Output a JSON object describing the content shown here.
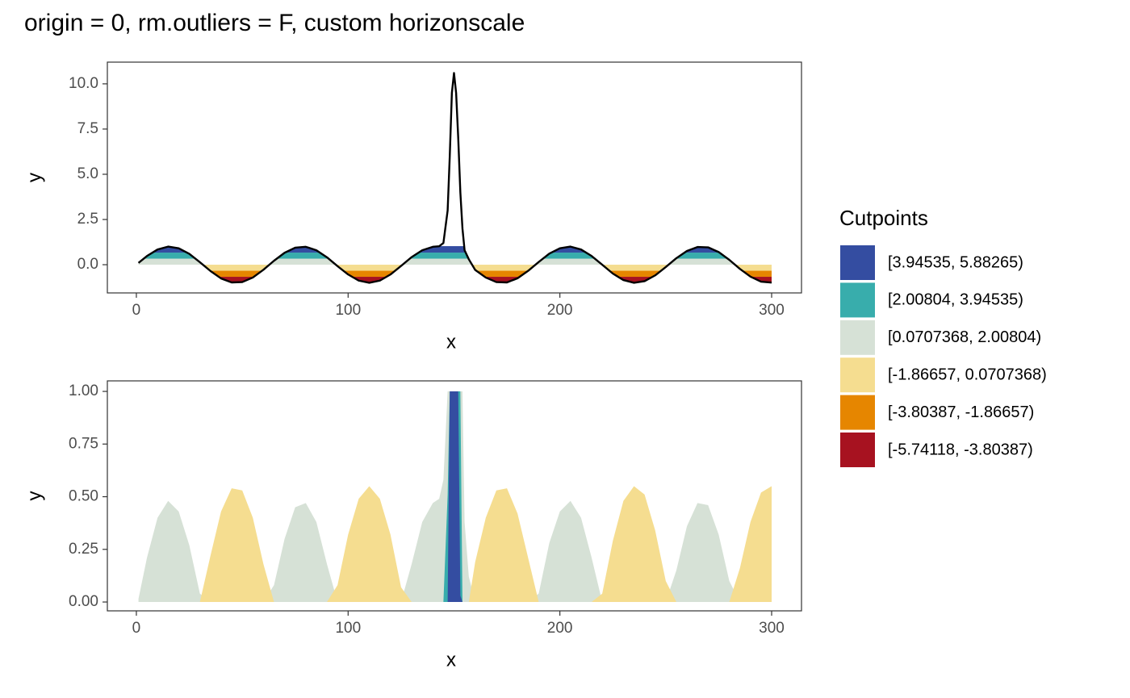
{
  "chart_data": [
    {
      "type": "line",
      "title": "origin = 0, rm.outliers = F, custom horizonscale",
      "xlabel": "x",
      "ylabel": "y",
      "color": "#000000",
      "x": [
        1,
        5,
        10,
        15,
        20,
        25,
        30,
        35,
        40,
        45,
        50,
        55,
        60,
        65,
        70,
        75,
        80,
        85,
        90,
        95,
        100,
        105,
        110,
        115,
        120,
        125,
        130,
        135,
        140,
        143,
        145,
        147,
        148,
        149,
        150,
        151,
        152,
        153,
        154,
        155,
        157,
        160,
        165,
        170,
        175,
        180,
        185,
        190,
        195,
        200,
        205,
        210,
        215,
        220,
        225,
        230,
        235,
        240,
        245,
        250,
        255,
        260,
        265,
        270,
        275,
        280,
        285,
        290,
        295,
        300
      ],
      "values": [
        0.1,
        0.48,
        0.84,
        1.0,
        0.91,
        0.6,
        0.14,
        -0.35,
        -0.76,
        -0.98,
        -0.96,
        -0.71,
        -0.28,
        0.22,
        0.66,
        0.94,
        0.99,
        0.8,
        0.41,
        -0.08,
        -0.54,
        -0.88,
        -1.0,
        -0.88,
        -0.54,
        -0.07,
        0.42,
        0.8,
        0.99,
        1.02,
        1.2,
        3.0,
        6.0,
        9.5,
        10.6,
        9.5,
        7.0,
        4.0,
        2.0,
        0.8,
        0.3,
        -0.29,
        -0.71,
        -0.96,
        -0.98,
        -0.75,
        -0.34,
        0.15,
        0.61,
        0.91,
        1.0,
        0.84,
        0.48,
        0.0,
        -0.49,
        -0.85,
        -1.0,
        -0.91,
        -0.59,
        -0.13,
        0.36,
        0.76,
        0.98,
        0.96,
        0.7,
        0.27,
        -0.23,
        -0.66,
        -0.94,
        -0.99
      ],
      "xlim": [
        -13.7,
        314.1
      ],
      "xticks": [
        0,
        100,
        200,
        300
      ],
      "ylim": [
        -1.56,
        11.2
      ],
      "yticks": [
        {
          "value": 0,
          "label": "0.0"
        },
        {
          "value": 2.5,
          "label": "2.5"
        },
        {
          "value": 5,
          "label": "5.0"
        },
        {
          "value": 7.5,
          "label": "7.5"
        },
        {
          "value": 10,
          "label": "10.0"
        }
      ],
      "grid": false
    },
    {
      "type": "area",
      "xlabel": "x",
      "ylabel": "y",
      "legend_title": "Cutpoints",
      "legend": "right",
      "x": [
        1,
        5,
        10,
        15,
        20,
        25,
        30,
        35,
        40,
        45,
        50,
        55,
        60,
        65,
        70,
        75,
        80,
        85,
        90,
        95,
        100,
        105,
        110,
        115,
        120,
        125,
        130,
        135,
        140,
        143,
        145,
        147,
        148,
        149,
        150,
        151,
        152,
        153,
        154,
        155,
        157,
        160,
        165,
        170,
        175,
        180,
        185,
        190,
        195,
        200,
        205,
        210,
        215,
        220,
        225,
        230,
        235,
        240,
        245,
        250,
        255,
        260,
        265,
        270,
        275,
        280,
        285,
        290,
        295,
        300
      ],
      "series": [
        {
          "name": "[3.94535, 5.88265)",
          "color": "#344da1",
          "values": [
            0,
            0,
            0,
            0,
            0,
            0,
            0,
            0,
            0,
            0,
            0,
            0,
            0,
            0,
            0,
            0,
            0,
            0,
            0,
            0,
            0,
            0,
            0,
            0,
            0,
            0,
            0,
            0,
            0,
            0,
            0,
            0,
            1,
            1,
            1,
            1,
            1,
            0.03,
            0,
            0,
            0,
            0,
            0,
            0,
            0,
            0,
            0,
            0,
            0,
            0,
            0,
            0,
            0,
            0,
            0,
            0,
            0,
            0,
            0,
            0,
            0,
            0,
            0,
            0,
            0,
            0,
            0,
            0,
            0,
            0
          ]
        },
        {
          "name": "[2.00804, 3.94535)",
          "color": "#38adac",
          "values": [
            0,
            0,
            0,
            0,
            0,
            0,
            0,
            0,
            0,
            0,
            0,
            0,
            0,
            0,
            0,
            0,
            0,
            0,
            0,
            0,
            0,
            0,
            0,
            0,
            0,
            0,
            0,
            0,
            0,
            0,
            0,
            0.51,
            1,
            1,
            1,
            1,
            1,
            1,
            0,
            0,
            0,
            0,
            0,
            0,
            0,
            0,
            0,
            0,
            0,
            0,
            0,
            0,
            0,
            0,
            0,
            0,
            0,
            0,
            0,
            0,
            0,
            0,
            0,
            0,
            0,
            0,
            0,
            0,
            0,
            0
          ]
        },
        {
          "name": "[0.0707368, 2.00804)",
          "color": "#d6e1d6",
          "values": [
            0.015,
            0.21,
            0.4,
            0.48,
            0.43,
            0.27,
            0.04,
            0,
            0,
            0,
            0,
            0,
            0,
            0.08,
            0.3,
            0.45,
            0.47,
            0.38,
            0.18,
            0,
            0,
            0,
            0,
            0,
            0,
            0,
            0.18,
            0.38,
            0.47,
            0.49,
            0.58,
            1,
            1,
            1,
            1,
            1,
            1,
            1,
            1,
            0.38,
            0.12,
            0,
            0,
            0,
            0,
            0,
            0,
            0.04,
            0.28,
            0.43,
            0.48,
            0.4,
            0.21,
            0,
            0,
            0,
            0,
            0,
            0,
            0,
            0.15,
            0.36,
            0.47,
            0.46,
            0.32,
            0.1,
            0,
            0,
            0,
            0
          ]
        },
        {
          "name": "[-1.86657, 0.0707368)",
          "color": "#f5dd90",
          "values": [
            0,
            0,
            0,
            0,
            0,
            0,
            0,
            0.22,
            0.43,
            0.54,
            0.53,
            0.4,
            0.18,
            0,
            0,
            0,
            0,
            0,
            0,
            0.08,
            0.32,
            0.49,
            0.55,
            0.49,
            0.32,
            0.07,
            0,
            0,
            0,
            0,
            0,
            0,
            0,
            0,
            0,
            0,
            0,
            0,
            0,
            0,
            0,
            0.19,
            0.4,
            0.53,
            0.54,
            0.42,
            0.21,
            0,
            0,
            0,
            0,
            0,
            0,
            0.04,
            0.29,
            0.48,
            0.55,
            0.51,
            0.34,
            0.1,
            0,
            0,
            0,
            0,
            0,
            0,
            0.16,
            0.38,
            0.52,
            0.55
          ]
        },
        {
          "name": "[-3.80387, -1.86657)",
          "color": "#e68600",
          "values": [
            0,
            0,
            0,
            0,
            0,
            0,
            0,
            0,
            0,
            0,
            0,
            0,
            0,
            0,
            0,
            0,
            0,
            0,
            0,
            0,
            0,
            0,
            0,
            0,
            0,
            0,
            0,
            0,
            0,
            0,
            0,
            0,
            0,
            0,
            0,
            0,
            0,
            0,
            0,
            0,
            0,
            0,
            0,
            0,
            0,
            0,
            0,
            0,
            0,
            0,
            0,
            0,
            0,
            0,
            0,
            0,
            0,
            0,
            0,
            0,
            0,
            0,
            0,
            0,
            0,
            0,
            0,
            0,
            0,
            0
          ]
        },
        {
          "name": "[-5.74118, -3.80387)",
          "color": "#a71220",
          "values": [
            0,
            0,
            0,
            0,
            0,
            0,
            0,
            0,
            0,
            0,
            0,
            0,
            0,
            0,
            0,
            0,
            0,
            0,
            0,
            0,
            0,
            0,
            0,
            0,
            0,
            0,
            0,
            0,
            0,
            0,
            0,
            0,
            0,
            0,
            0,
            0,
            0,
            0,
            0,
            0,
            0,
            0,
            0,
            0,
            0,
            0,
            0,
            0,
            0,
            0,
            0,
            0,
            0,
            0,
            0,
            0,
            0,
            0,
            0,
            0,
            0,
            0,
            0,
            0,
            0,
            0,
            0,
            0,
            0,
            0
          ]
        }
      ],
      "xlim": [
        -13.7,
        314.1
      ],
      "xticks": [
        0,
        100,
        200,
        300
      ],
      "ylim": [
        -0.042,
        1.05
      ],
      "yticks": [
        {
          "value": 0,
          "label": "0.00"
        },
        {
          "value": 0.25,
          "label": "0.25"
        },
        {
          "value": 0.5,
          "label": "0.50"
        },
        {
          "value": 0.75,
          "label": "0.75"
        },
        {
          "value": 1,
          "label": "1.00"
        }
      ],
      "grid": false
    }
  ]
}
